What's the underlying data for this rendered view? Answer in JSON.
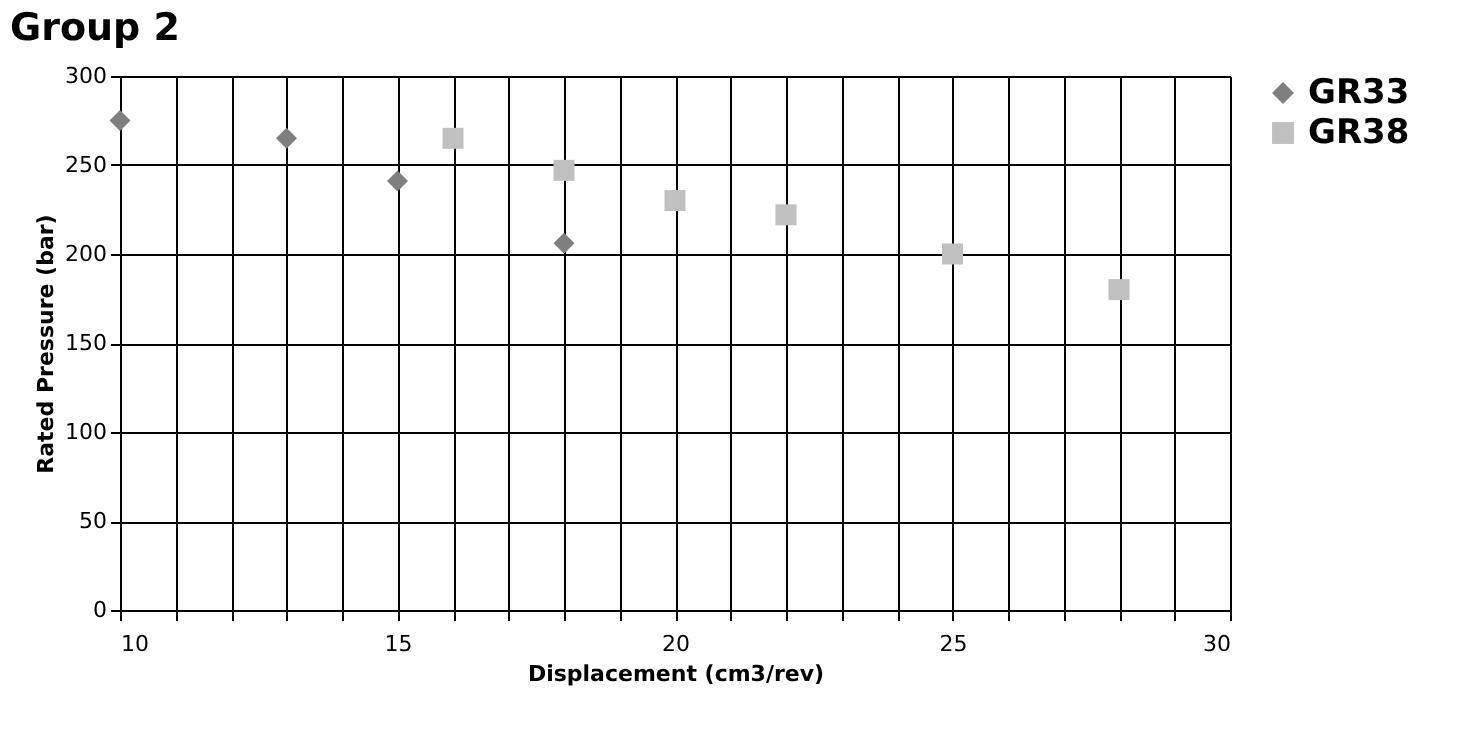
{
  "chart_data": {
    "type": "scatter",
    "title": "Group 2",
    "xlabel": "Displacement (cm3/rev)",
    "ylabel": "Rated Pressure (bar)",
    "xlim": [
      10,
      30
    ],
    "ylim": [
      0,
      300
    ],
    "xticks": [
      10,
      {
        "value": 11,
        "label": null
      },
      {
        "value": 12,
        "label": null
      },
      {
        "value": 13,
        "label": null
      },
      {
        "value": 14,
        "label": null
      },
      15,
      {
        "value": 16,
        "label": null
      },
      {
        "value": 17,
        "label": null
      },
      {
        "value": 18,
        "label": null
      },
      {
        "value": 19,
        "label": null
      },
      20,
      {
        "value": 21,
        "label": null
      },
      {
        "value": 22,
        "label": null
      },
      {
        "value": 23,
        "label": null
      },
      {
        "value": 24,
        "label": null
      },
      25,
      {
        "value": 26,
        "label": null
      },
      {
        "value": 27,
        "label": null
      },
      {
        "value": 28,
        "label": null
      },
      {
        "value": 29,
        "label": null
      },
      30
    ],
    "yticks": [
      0,
      50,
      100,
      150,
      200,
      250,
      300
    ],
    "grid": true,
    "legend": "right",
    "series": [
      {
        "name": "GR33",
        "color": "#7f7f7f",
        "marker": "diamond",
        "x": [
          10,
          13,
          15,
          18
        ],
        "values": [
          275,
          265,
          241,
          206
        ]
      },
      {
        "name": "GR38",
        "color": "#c0c0c0",
        "marker": "square",
        "x": [
          16,
          18,
          20,
          22,
          25,
          28
        ],
        "values": [
          265,
          247,
          230,
          222,
          200,
          180
        ]
      }
    ]
  }
}
